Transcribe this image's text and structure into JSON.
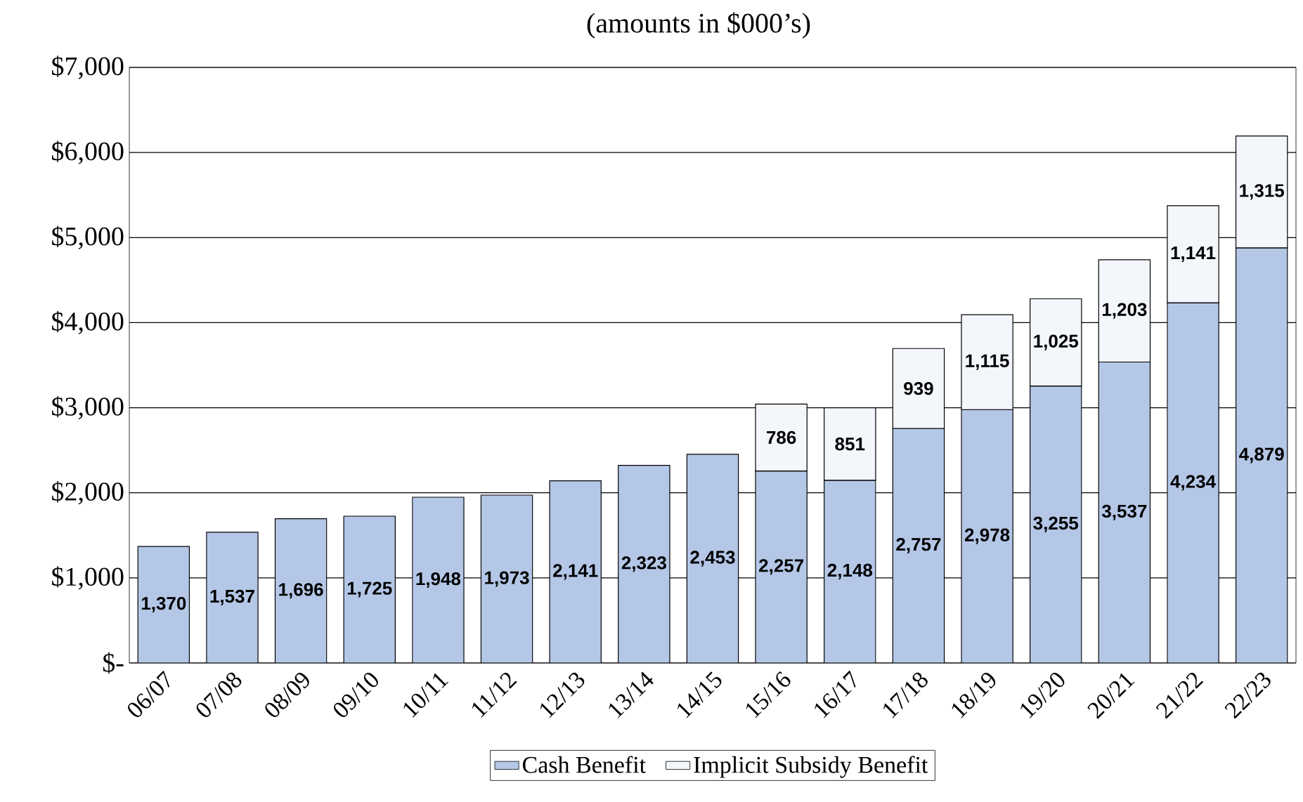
{
  "chart_data": {
    "type": "bar",
    "stacked": true,
    "title": "(amounts in $000’s)",
    "categories": [
      "06/07",
      "07/08",
      "08/09",
      "09/10",
      "10/11",
      "11/12",
      "12/13",
      "13/14",
      "14/15",
      "15/16",
      "16/17",
      "17/18",
      "18/19",
      "19/20",
      "20/21",
      "21/22",
      "22/23"
    ],
    "series": [
      {
        "name": "Cash Benefit",
        "color": "#b4c7e7",
        "values": [
          1370,
          1537,
          1696,
          1725,
          1948,
          1973,
          2141,
          2323,
          2453,
          2257,
          2148,
          2757,
          2978,
          3255,
          3537,
          4234,
          4879
        ],
        "value_labels": [
          "1,370",
          "1,537",
          "1,696",
          "1,725",
          "1,948",
          "1,973",
          "2,141",
          "2,323",
          "2,453",
          "2,257",
          "2,148",
          "2,757",
          "2,978",
          "3,255",
          "3,537",
          "4,234",
          "4,879"
        ]
      },
      {
        "name": "Implicit Subsidy Benefit",
        "color": "#f3f6fb",
        "values": [
          null,
          null,
          null,
          null,
          null,
          null,
          null,
          null,
          null,
          786,
          851,
          939,
          1115,
          1025,
          1203,
          1141,
          1315
        ],
        "value_labels": [
          null,
          null,
          null,
          null,
          null,
          null,
          null,
          null,
          null,
          "786",
          "851",
          "939",
          "1,115",
          "1,025",
          "1,203",
          "1,141",
          "1,315"
        ]
      }
    ],
    "ylim": [
      0,
      7000
    ],
    "yticks": [
      {
        "value": 0,
        "label": "$-"
      },
      {
        "value": 1000,
        "label": "$1,000"
      },
      {
        "value": 2000,
        "label": "$2,000"
      },
      {
        "value": 3000,
        "label": "$3,000"
      },
      {
        "value": 4000,
        "label": "$4,000"
      },
      {
        "value": 5000,
        "label": "$5,000"
      },
      {
        "value": 6000,
        "label": "$6,000"
      },
      {
        "value": 7000,
        "label": "$7,000"
      }
    ],
    "grid": "y",
    "legend": "bottom"
  }
}
